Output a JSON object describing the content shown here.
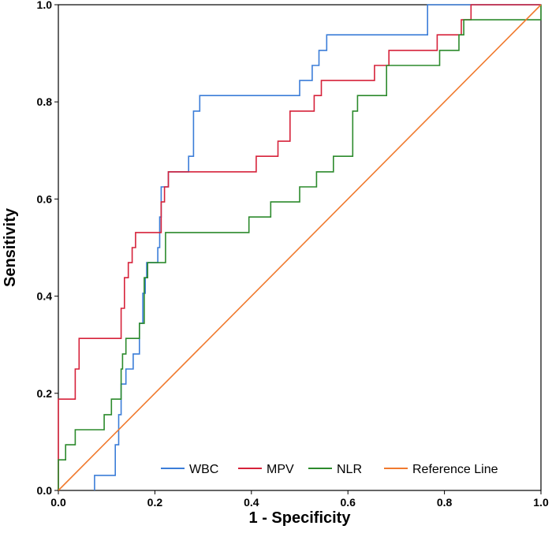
{
  "chart_data": {
    "type": "line",
    "xlabel": "1 - Specificity",
    "ylabel": "Sensitivity",
    "xlim": [
      0,
      1
    ],
    "ylim": [
      0,
      1
    ],
    "xticks": [
      "0.0",
      "0.2",
      "0.4",
      "0.6",
      "0.8",
      "1.0"
    ],
    "yticks": [
      "0.0",
      "0.2",
      "0.4",
      "0.6",
      "0.8",
      "1.0"
    ],
    "grid": false,
    "legend_position": "bottom-right",
    "series": [
      {
        "name": "WBC",
        "color": "#3b7dd8",
        "points": [
          [
            0.075,
            0.0
          ],
          [
            0.075,
            0.031
          ],
          [
            0.118,
            0.031
          ],
          [
            0.118,
            0.094
          ],
          [
            0.125,
            0.094
          ],
          [
            0.125,
            0.156
          ],
          [
            0.13,
            0.156
          ],
          [
            0.13,
            0.219
          ],
          [
            0.14,
            0.219
          ],
          [
            0.14,
            0.25
          ],
          [
            0.155,
            0.25
          ],
          [
            0.155,
            0.281
          ],
          [
            0.168,
            0.281
          ],
          [
            0.168,
            0.344
          ],
          [
            0.175,
            0.344
          ],
          [
            0.175,
            0.406
          ],
          [
            0.18,
            0.406
          ],
          [
            0.18,
            0.438
          ],
          [
            0.183,
            0.438
          ],
          [
            0.183,
            0.469
          ],
          [
            0.206,
            0.469
          ],
          [
            0.206,
            0.5
          ],
          [
            0.21,
            0.5
          ],
          [
            0.21,
            0.563
          ],
          [
            0.213,
            0.563
          ],
          [
            0.213,
            0.625
          ],
          [
            0.228,
            0.625
          ],
          [
            0.228,
            0.656
          ],
          [
            0.27,
            0.656
          ],
          [
            0.27,
            0.688
          ],
          [
            0.28,
            0.688
          ],
          [
            0.28,
            0.781
          ],
          [
            0.293,
            0.781
          ],
          [
            0.293,
            0.813
          ],
          [
            0.5,
            0.813
          ],
          [
            0.5,
            0.844
          ],
          [
            0.526,
            0.844
          ],
          [
            0.526,
            0.875
          ],
          [
            0.54,
            0.875
          ],
          [
            0.54,
            0.906
          ],
          [
            0.556,
            0.906
          ],
          [
            0.556,
            0.938
          ],
          [
            0.765,
            0.938
          ],
          [
            0.765,
            1.0
          ],
          [
            1.0,
            1.0
          ]
        ]
      },
      {
        "name": "MPV",
        "color": "#d6223a",
        "points": [
          [
            0.0,
            0.0
          ],
          [
            0.0,
            0.188
          ],
          [
            0.035,
            0.188
          ],
          [
            0.035,
            0.25
          ],
          [
            0.043,
            0.25
          ],
          [
            0.043,
            0.313
          ],
          [
            0.13,
            0.313
          ],
          [
            0.13,
            0.375
          ],
          [
            0.137,
            0.375
          ],
          [
            0.137,
            0.438
          ],
          [
            0.145,
            0.438
          ],
          [
            0.145,
            0.469
          ],
          [
            0.153,
            0.469
          ],
          [
            0.153,
            0.5
          ],
          [
            0.16,
            0.5
          ],
          [
            0.16,
            0.531
          ],
          [
            0.213,
            0.531
          ],
          [
            0.213,
            0.594
          ],
          [
            0.22,
            0.594
          ],
          [
            0.22,
            0.625
          ],
          [
            0.228,
            0.625
          ],
          [
            0.228,
            0.656
          ],
          [
            0.41,
            0.656
          ],
          [
            0.41,
            0.688
          ],
          [
            0.455,
            0.688
          ],
          [
            0.455,
            0.719
          ],
          [
            0.48,
            0.719
          ],
          [
            0.48,
            0.781
          ],
          [
            0.53,
            0.781
          ],
          [
            0.53,
            0.813
          ],
          [
            0.545,
            0.813
          ],
          [
            0.545,
            0.844
          ],
          [
            0.655,
            0.844
          ],
          [
            0.655,
            0.875
          ],
          [
            0.685,
            0.875
          ],
          [
            0.685,
            0.906
          ],
          [
            0.785,
            0.906
          ],
          [
            0.785,
            0.938
          ],
          [
            0.835,
            0.938
          ],
          [
            0.835,
            0.969
          ],
          [
            0.855,
            0.969
          ],
          [
            0.855,
            1.0
          ],
          [
            1.0,
            1.0
          ]
        ]
      },
      {
        "name": "NLR",
        "color": "#2c8a2c",
        "points": [
          [
            0.0,
            0.0
          ],
          [
            0.0,
            0.063
          ],
          [
            0.015,
            0.063
          ],
          [
            0.015,
            0.094
          ],
          [
            0.035,
            0.094
          ],
          [
            0.035,
            0.125
          ],
          [
            0.095,
            0.125
          ],
          [
            0.095,
            0.156
          ],
          [
            0.11,
            0.156
          ],
          [
            0.11,
            0.188
          ],
          [
            0.13,
            0.188
          ],
          [
            0.13,
            0.25
          ],
          [
            0.133,
            0.25
          ],
          [
            0.133,
            0.281
          ],
          [
            0.14,
            0.281
          ],
          [
            0.14,
            0.313
          ],
          [
            0.168,
            0.313
          ],
          [
            0.168,
            0.344
          ],
          [
            0.178,
            0.344
          ],
          [
            0.178,
            0.438
          ],
          [
            0.185,
            0.438
          ],
          [
            0.185,
            0.469
          ],
          [
            0.222,
            0.469
          ],
          [
            0.222,
            0.531
          ],
          [
            0.395,
            0.531
          ],
          [
            0.395,
            0.563
          ],
          [
            0.44,
            0.563
          ],
          [
            0.44,
            0.594
          ],
          [
            0.5,
            0.594
          ],
          [
            0.5,
            0.625
          ],
          [
            0.535,
            0.625
          ],
          [
            0.535,
            0.656
          ],
          [
            0.57,
            0.656
          ],
          [
            0.57,
            0.688
          ],
          [
            0.61,
            0.688
          ],
          [
            0.61,
            0.781
          ],
          [
            0.62,
            0.781
          ],
          [
            0.62,
            0.813
          ],
          [
            0.68,
            0.813
          ],
          [
            0.68,
            0.875
          ],
          [
            0.79,
            0.875
          ],
          [
            0.79,
            0.906
          ],
          [
            0.83,
            0.906
          ],
          [
            0.83,
            0.938
          ],
          [
            0.84,
            0.938
          ],
          [
            0.84,
            0.969
          ],
          [
            1.0,
            0.969
          ],
          [
            1.0,
            1.0
          ]
        ]
      },
      {
        "name": "Reference Line",
        "color": "#f07a2e",
        "points": [
          [
            0.0,
            0.0
          ],
          [
            1.0,
            1.0
          ]
        ]
      }
    ]
  }
}
